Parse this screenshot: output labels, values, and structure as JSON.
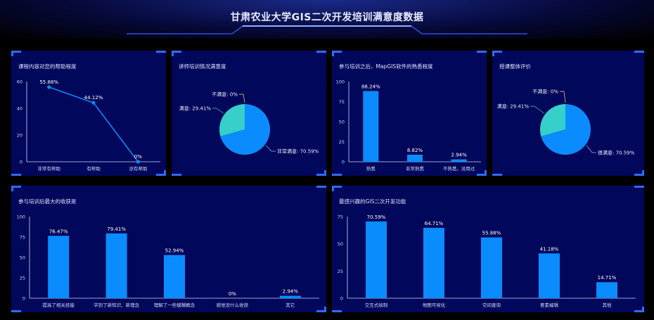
{
  "page": {
    "title": "甘肃农业大学GIS二次开发培训满意度数据"
  },
  "colors": {
    "bar": "#0a8cff",
    "pie_main": "#0a8cff",
    "pie_second": "#36cfc9",
    "axis": "#d0d8ff",
    "line": "#0a8cff"
  },
  "panels": {
    "p1": {
      "title": "课程内容对您的帮助程度"
    },
    "p2": {
      "title": "讲师培训情况满意度"
    },
    "p3": {
      "title": "参与培训之后，MapGIS软件的熟悉程度"
    },
    "p4": {
      "title": "授课整体评价"
    },
    "p5": {
      "title": "参与培训后最大的收获是"
    },
    "p6": {
      "title": "最感兴趣的GIS二次开发功能"
    }
  },
  "chart_data": [
    {
      "id": "p1",
      "type": "line",
      "categories": [
        "非常有帮助",
        "有帮助",
        "没有帮助"
      ],
      "values": [
        55.88,
        44.12,
        0
      ],
      "labels": [
        "55.88%",
        "44.12%",
        "0%"
      ],
      "yticks": [
        0,
        20,
        40,
        60
      ],
      "ylim": [
        0,
        60
      ]
    },
    {
      "id": "p2",
      "type": "pie",
      "slices": [
        {
          "name": "非常满意",
          "value": 70.59,
          "label": "非常满意: 70.59%"
        },
        {
          "name": "满意",
          "value": 29.41,
          "label": "满意: 29.41%"
        },
        {
          "name": "不满意",
          "value": 0,
          "label": "不满意: 0%"
        }
      ]
    },
    {
      "id": "p3",
      "type": "bar",
      "categories": [
        "熟悉",
        "非常熟悉",
        "不熟悉，没用过"
      ],
      "values": [
        88.24,
        8.82,
        2.94
      ],
      "labels": [
        "88.24%",
        "8.82%",
        "2.94%"
      ],
      "yticks": [
        0,
        25,
        50,
        75,
        100
      ],
      "ylim": [
        0,
        100
      ]
    },
    {
      "id": "p4",
      "type": "pie",
      "slices": [
        {
          "name": "很满意",
          "value": 70.59,
          "label": "很满意: 70.59%"
        },
        {
          "name": "满意",
          "value": 29.41,
          "label": "满意: 29.41%"
        },
        {
          "name": "不满意",
          "value": 0,
          "label": "不满意: 0%"
        }
      ]
    },
    {
      "id": "p5",
      "type": "bar",
      "categories": [
        "提高了相关技能",
        "学到了新知识、新理念",
        "理解了一些模糊概念",
        "感觉没什么收获",
        "其它"
      ],
      "values": [
        76.47,
        79.41,
        52.94,
        0,
        2.94
      ],
      "labels": [
        "76.47%",
        "79.41%",
        "52.94%",
        "0%",
        "2.94%"
      ],
      "yticks": [
        0,
        25,
        50,
        75,
        100
      ],
      "ylim": [
        0,
        100
      ]
    },
    {
      "id": "p6",
      "type": "bar",
      "categories": [
        "交互式绘制",
        "地图可视化",
        "空间查询",
        "要素编辑",
        "其他"
      ],
      "values": [
        70.59,
        64.71,
        55.88,
        41.18,
        14.71
      ],
      "labels": [
        "70.59%",
        "64.71%",
        "55.88%",
        "41.18%",
        "14.71%"
      ],
      "yticks": [
        0,
        25,
        50,
        75
      ],
      "ylim": [
        0,
        75
      ]
    }
  ]
}
